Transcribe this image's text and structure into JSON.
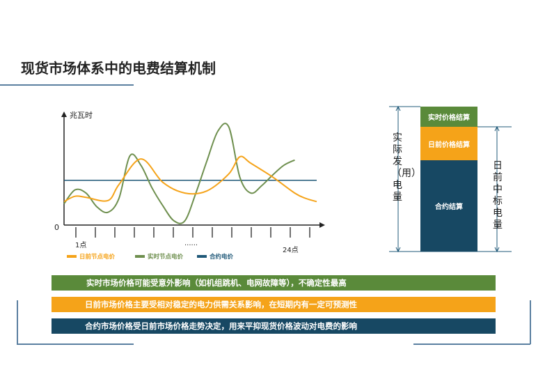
{
  "page": {
    "title": "现货市场体系中的电费结算机制"
  },
  "chart_data": {
    "type": "line",
    "ylabel": "兆瓦时",
    "origin_label": "0",
    "x_tick_labels": [
      "1点",
      "......",
      "24点"
    ],
    "series": [
      {
        "name": "日前节点电价",
        "color": "#f5a319",
        "points": [
          [
            1,
            0.22
          ],
          [
            2,
            0.27
          ],
          [
            3,
            0.26
          ],
          [
            5,
            0.23
          ],
          [
            6,
            0.38
          ],
          [
            8,
            0.62
          ],
          [
            10,
            0.4
          ],
          [
            12,
            0.3
          ],
          [
            14,
            0.32
          ],
          [
            16,
            0.48
          ],
          [
            17,
            0.64
          ],
          [
            18,
            0.58
          ],
          [
            20,
            0.45
          ],
          [
            22,
            0.3
          ],
          [
            23,
            0.25
          ],
          [
            24,
            0.22
          ]
        ]
      },
      {
        "name": "实时节点电价",
        "color": "#6e8f4e",
        "points": [
          [
            1,
            0.2
          ],
          [
            2,
            0.33
          ],
          [
            3,
            0.3
          ],
          [
            4,
            0.17
          ],
          [
            5,
            0.12
          ],
          [
            6,
            0.25
          ],
          [
            7,
            0.65
          ],
          [
            8,
            0.56
          ],
          [
            9,
            0.35
          ],
          [
            10,
            0.18
          ],
          [
            11,
            0.04
          ],
          [
            12,
            0.04
          ],
          [
            13,
            0.3
          ],
          [
            14,
            0.6
          ],
          [
            15,
            0.88
          ],
          [
            16,
            0.92
          ],
          [
            17,
            0.45
          ],
          [
            18,
            0.3
          ],
          [
            19,
            0.37
          ],
          [
            20,
            0.47
          ],
          [
            21,
            0.56
          ],
          [
            22,
            0.61
          ]
        ]
      },
      {
        "name": "合约电价",
        "color": "#1f5878",
        "points": [
          [
            1,
            0.42
          ],
          [
            24,
            0.42
          ]
        ]
      }
    ],
    "stacked_bar": {
      "segments": [
        {
          "label": "实时价格结算",
          "color": "#5a8a3a"
        },
        {
          "label": "日前价格结算",
          "color": "#f5a319"
        },
        {
          "label": "合约结算",
          "color": "#174863"
        }
      ],
      "left_label": "实际发（用）电量",
      "right_label": "日前中标电量"
    }
  },
  "notes": {
    "realtime": "实时市场价格可能受意外影响（如机组跳机、电网故障等），不确定性最高",
    "dayahead": "日前市场价格主要受相对稳定的电力供需关系影响，在短期内有一定可预测性",
    "contract": "合约市场价格受日前市场价格走势决定，用来平抑现货价格波动对电费的影响"
  }
}
